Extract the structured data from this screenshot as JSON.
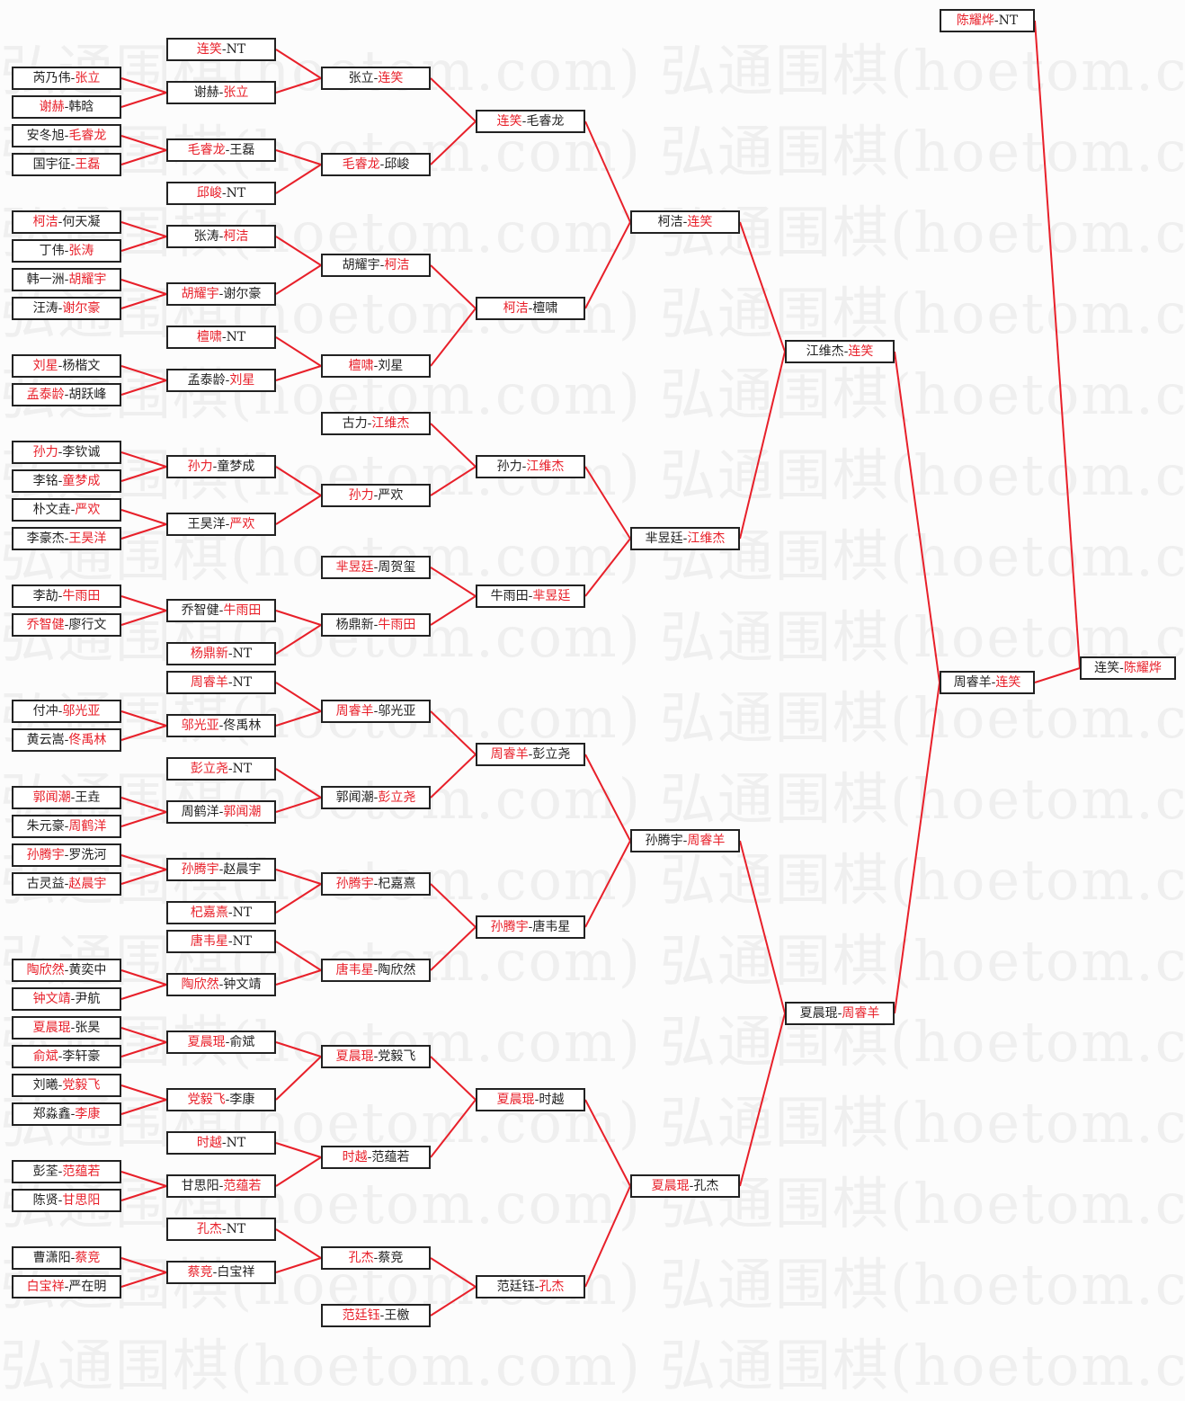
{
  "watermark": "弘通围棋(hoetom.com)",
  "colors": {
    "winner": "#e8202a",
    "line": "#e8202a",
    "text": "#222222"
  },
  "separator": "-",
  "matches": [
    {
      "players": [
        "芮乃伟",
        "张立"
      ],
      "winner": 1
    },
    {
      "players": [
        "谢赫",
        "韩晗"
      ],
      "winner": 0
    },
    {
      "players": [
        "安冬旭",
        "毛睿龙"
      ],
      "winner": 1
    },
    {
      "players": [
        "国宇征",
        "王磊"
      ],
      "winner": 1
    },
    {
      "players": [
        "柯洁",
        "何天凝"
      ],
      "winner": 0
    },
    {
      "players": [
        "丁伟",
        "张涛"
      ],
      "winner": 1
    },
    {
      "players": [
        "韩一洲",
        "胡耀宇"
      ],
      "winner": 1
    },
    {
      "players": [
        "汪涛",
        "谢尔豪"
      ],
      "winner": 1
    },
    {
      "players": [
        "刘星",
        "杨楷文"
      ],
      "winner": 0
    },
    {
      "players": [
        "孟泰龄",
        "胡跃峰"
      ],
      "winner": 0
    },
    {
      "players": [
        "孙力",
        "李钦诚"
      ],
      "winner": 0
    },
    {
      "players": [
        "李铭",
        "童梦成"
      ],
      "winner": 1
    },
    {
      "players": [
        "朴文垚",
        "严欢"
      ],
      "winner": 1
    },
    {
      "players": [
        "李豪杰",
        "王昊洋"
      ],
      "winner": 1
    },
    {
      "players": [
        "李劼",
        "牛雨田"
      ],
      "winner": 1
    },
    {
      "players": [
        "乔智健",
        "廖行文"
      ],
      "winner": 0
    },
    {
      "players": [
        "付冲",
        "邬光亚"
      ],
      "winner": 1
    },
    {
      "players": [
        "黄云嵩",
        "佟禹林"
      ],
      "winner": 1
    },
    {
      "players": [
        "郭闻潮",
        "王垚"
      ],
      "winner": 0
    },
    {
      "players": [
        "朱元豪",
        "周鹤洋"
      ],
      "winner": 1
    },
    {
      "players": [
        "孙腾宇",
        "罗洗河"
      ],
      "winner": 0
    },
    {
      "players": [
        "古灵益",
        "赵晨宇"
      ],
      "winner": 1
    },
    {
      "players": [
        "陶欣然",
        "黄奕中"
      ],
      "winner": 0
    },
    {
      "players": [
        "钟文靖",
        "尹航"
      ],
      "winner": 0
    },
    {
      "players": [
        "夏晨琨",
        "张昊"
      ],
      "winner": 0
    },
    {
      "players": [
        "俞斌",
        "李轩豪"
      ],
      "winner": 0
    },
    {
      "players": [
        "刘曦",
        "党毅飞"
      ],
      "winner": 1
    },
    {
      "players": [
        "郑淼鑫",
        "李康"
      ],
      "winner": 1
    },
    {
      "players": [
        "彭荃",
        "范蕴若"
      ],
      "winner": 1
    },
    {
      "players": [
        "陈贤",
        "甘思阳"
      ],
      "winner": 1
    },
    {
      "players": [
        "曹潇阳",
        "蔡竞"
      ],
      "winner": 1
    },
    {
      "players": [
        "白宝祥",
        "严在明"
      ],
      "winner": 0
    },
    {
      "players": [
        "连笑",
        "NT"
      ],
      "winner": 0
    },
    {
      "players": [
        "谢赫",
        "张立"
      ],
      "winner": 1
    },
    {
      "players": [
        "毛睿龙",
        "王磊"
      ],
      "winner": 0
    },
    {
      "players": [
        "邱峻",
        "NT"
      ],
      "winner": 0
    },
    {
      "players": [
        "张涛",
        "柯洁"
      ],
      "winner": 1
    },
    {
      "players": [
        "胡耀宇",
        "谢尔豪"
      ],
      "winner": 0
    },
    {
      "players": [
        "檀啸",
        "NT"
      ],
      "winner": 0
    },
    {
      "players": [
        "孟泰龄",
        "刘星"
      ],
      "winner": 1
    },
    {
      "players": [
        "孙力",
        "童梦成"
      ],
      "winner": 0
    },
    {
      "players": [
        "王昊洋",
        "严欢"
      ],
      "winner": 1
    },
    {
      "players": [
        "乔智健",
        "牛雨田"
      ],
      "winner": 1
    },
    {
      "players": [
        "杨鼎新",
        "NT"
      ],
      "winner": 0
    },
    {
      "players": [
        "周睿羊",
        "NT"
      ],
      "winner": 0
    },
    {
      "players": [
        "邬光亚",
        "佟禹林"
      ],
      "winner": 0
    },
    {
      "players": [
        "彭立尧",
        "NT"
      ],
      "winner": 0
    },
    {
      "players": [
        "周鹤洋",
        "郭闻潮"
      ],
      "winner": 1
    },
    {
      "players": [
        "孙腾宇",
        "赵晨宇"
      ],
      "winner": 0
    },
    {
      "players": [
        "杞嘉熹",
        "NT"
      ],
      "winner": 0
    },
    {
      "players": [
        "唐韦星",
        "NT"
      ],
      "winner": 0
    },
    {
      "players": [
        "陶欣然",
        "钟文靖"
      ],
      "winner": 0
    },
    {
      "players": [
        "夏晨琨",
        "俞斌"
      ],
      "winner": 0
    },
    {
      "players": [
        "党毅飞",
        "李康"
      ],
      "winner": 0
    },
    {
      "players": [
        "时越",
        "NT"
      ],
      "winner": 0
    },
    {
      "players": [
        "甘思阳",
        "范蕴若"
      ],
      "winner": 1
    },
    {
      "players": [
        "孔杰",
        "NT"
      ],
      "winner": 0
    },
    {
      "players": [
        "蔡竞",
        "白宝祥"
      ],
      "winner": 0
    },
    {
      "players": [
        "张立",
        "连笑"
      ],
      "winner": 1
    },
    {
      "players": [
        "毛睿龙",
        "邱峻"
      ],
      "winner": 0
    },
    {
      "players": [
        "胡耀宇",
        "柯洁"
      ],
      "winner": 1
    },
    {
      "players": [
        "檀啸",
        "刘星"
      ],
      "winner": 0
    },
    {
      "players": [
        "古力",
        "江维杰"
      ],
      "winner": 1
    },
    {
      "players": [
        "孙力",
        "严欢"
      ],
      "winner": 0
    },
    {
      "players": [
        "芈昱廷",
        "周贺玺"
      ],
      "winner": 0
    },
    {
      "players": [
        "杨鼎新",
        "牛雨田"
      ],
      "winner": 1
    },
    {
      "players": [
        "周睿羊",
        "邬光亚"
      ],
      "winner": 0
    },
    {
      "players": [
        "郭闻潮",
        "彭立尧"
      ],
      "winner": 1
    },
    {
      "players": [
        "孙腾宇",
        "杞嘉熹"
      ],
      "winner": 0
    },
    {
      "players": [
        "唐韦星",
        "陶欣然"
      ],
      "winner": 0
    },
    {
      "players": [
        "夏晨琨",
        "党毅飞"
      ],
      "winner": 0
    },
    {
      "players": [
        "时越",
        "范蕴若"
      ],
      "winner": 0
    },
    {
      "players": [
        "孔杰",
        "蔡竞"
      ],
      "winner": 0
    },
    {
      "players": [
        "范廷钰",
        "王檄"
      ],
      "winner": 0
    },
    {
      "players": [
        "连笑",
        "毛睿龙"
      ],
      "winner": 0
    },
    {
      "players": [
        "柯洁",
        "檀啸"
      ],
      "winner": 0
    },
    {
      "players": [
        "孙力",
        "江维杰"
      ],
      "winner": 1
    },
    {
      "players": [
        "牛雨田",
        "芈昱廷"
      ],
      "winner": 1
    },
    {
      "players": [
        "周睿羊",
        "彭立尧"
      ],
      "winner": 0
    },
    {
      "players": [
        "孙腾宇",
        "唐韦星"
      ],
      "winner": 0
    },
    {
      "players": [
        "夏晨琨",
        "时越"
      ],
      "winner": 0
    },
    {
      "players": [
        "范廷钰",
        "孔杰"
      ],
      "winner": 1
    },
    {
      "players": [
        "柯洁",
        "连笑"
      ],
      "winner": 1
    },
    {
      "players": [
        "芈昱廷",
        "江维杰"
      ],
      "winner": 1
    },
    {
      "players": [
        "孙腾宇",
        "周睿羊"
      ],
      "winner": 1
    },
    {
      "players": [
        "夏晨琨",
        "孔杰"
      ],
      "winner": 0
    },
    {
      "players": [
        "江维杰",
        "连笑"
      ],
      "winner": 1
    },
    {
      "players": [
        "夏晨琨",
        "周睿羊"
      ],
      "winner": 1
    },
    {
      "players": [
        "陈耀烨",
        "NT"
      ],
      "winner": 0
    },
    {
      "players": [
        "周睿羊",
        "连笑"
      ],
      "winner": 1
    },
    {
      "players": [
        "连笑",
        "陈耀烨"
      ],
      "winner": 1
    }
  ]
}
